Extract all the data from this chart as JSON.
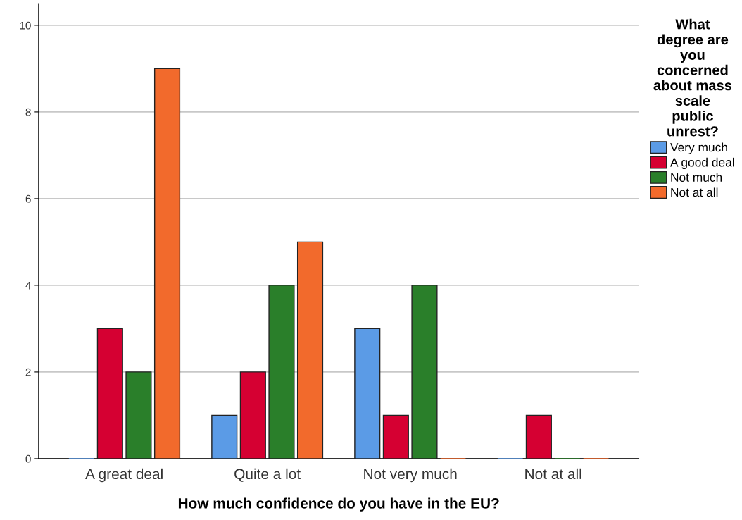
{
  "chart_data": {
    "type": "bar",
    "xlabel": "How much confidence do you have in the EU?",
    "legend_title": "What degree are you concerned about mass scale public unrest?",
    "categories": [
      "A great deal",
      "Quite a lot",
      "Not very much",
      "Not at all"
    ],
    "series": [
      {
        "name": "Very much",
        "color": "#5b9be6",
        "values": [
          0,
          1,
          3,
          0
        ]
      },
      {
        "name": "A good deal",
        "color": "#d50032",
        "values": [
          3,
          2,
          1,
          1
        ]
      },
      {
        "name": "Not much",
        "color": "#2a7f2a",
        "values": [
          2,
          4,
          4,
          0
        ]
      },
      {
        "name": "Not at all",
        "color": "#f26a2c",
        "values": [
          9,
          5,
          0,
          0
        ]
      }
    ],
    "ylim": [
      0,
      10.5
    ],
    "yticks": [
      0,
      2,
      4,
      6,
      8,
      10
    ],
    "grid": "y",
    "legend": "right"
  }
}
